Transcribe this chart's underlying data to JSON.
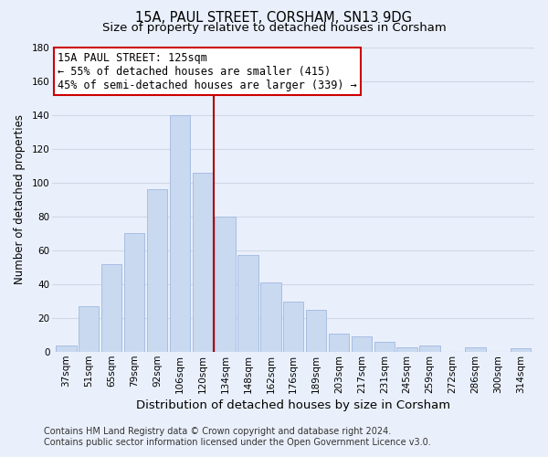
{
  "title": "15A, PAUL STREET, CORSHAM, SN13 9DG",
  "subtitle": "Size of property relative to detached houses in Corsham",
  "xlabel": "Distribution of detached houses by size in Corsham",
  "ylabel": "Number of detached properties",
  "categories": [
    "37sqm",
    "51sqm",
    "65sqm",
    "79sqm",
    "92sqm",
    "106sqm",
    "120sqm",
    "134sqm",
    "148sqm",
    "162sqm",
    "176sqm",
    "189sqm",
    "203sqm",
    "217sqm",
    "231sqm",
    "245sqm",
    "259sqm",
    "272sqm",
    "286sqm",
    "300sqm",
    "314sqm"
  ],
  "values": [
    4,
    27,
    52,
    70,
    96,
    140,
    106,
    80,
    57,
    41,
    30,
    25,
    11,
    9,
    6,
    3,
    4,
    0,
    3,
    0,
    2
  ],
  "bar_color": "#c8d9f0",
  "bar_edge_color": "#a0b8e0",
  "grid_color": "#d0d8e8",
  "background_color": "#eaf0fb",
  "property_line_color": "#aa0000",
  "annotation_title": "15A PAUL STREET: 125sqm",
  "annotation_line1": "← 55% of detached houses are smaller (415)",
  "annotation_line2": "45% of semi-detached houses are larger (339) →",
  "annotation_box_color": "#ffffff",
  "annotation_box_edge": "#cc0000",
  "ylim": [
    0,
    180
  ],
  "yticks": [
    0,
    20,
    40,
    60,
    80,
    100,
    120,
    140,
    160,
    180
  ],
  "footer1": "Contains HM Land Registry data © Crown copyright and database right 2024.",
  "footer2": "Contains public sector information licensed under the Open Government Licence v3.0.",
  "title_fontsize": 10.5,
  "subtitle_fontsize": 9.5,
  "xlabel_fontsize": 9.5,
  "ylabel_fontsize": 8.5,
  "tick_fontsize": 7.5,
  "footer_fontsize": 7,
  "annotation_fontsize": 8.5
}
